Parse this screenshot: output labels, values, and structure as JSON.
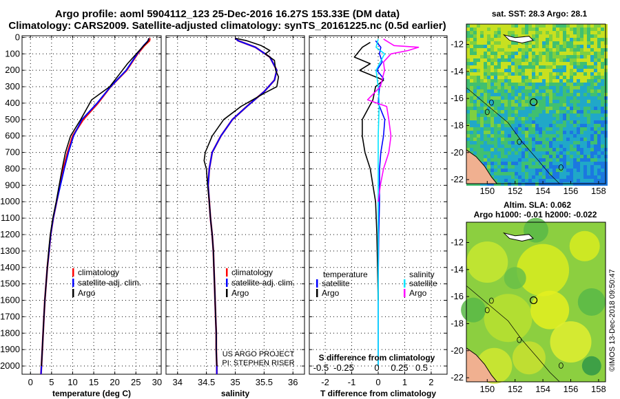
{
  "header": {
    "line1": "Argo profile: aoml 5904112_123 25-Dec-2016 16.27S 153.33E (DM data)",
    "line2": "Climatology: CARS2009. Satellite-adjusted climatology: synTS_20161225.nc (0.5d earlier)"
  },
  "colors": {
    "climatology": "#ff0000",
    "satellite": "#0000ff",
    "argo": "#000000",
    "salinity_sat": "#00e5ff",
    "salinity_argo": "#ff00ff"
  },
  "depth_ticks": [
    0,
    100,
    200,
    300,
    400,
    500,
    600,
    700,
    800,
    900,
    1000,
    1100,
    1200,
    1300,
    1400,
    1500,
    1600,
    1700,
    1800,
    1900,
    2000
  ],
  "credits": {
    "project": "US ARGO PROJECT",
    "pi": "PI: STEPHEN RISER",
    "imos": "©IMOS 13-Dec-2018 09:50:47"
  },
  "chart_data": [
    {
      "type": "line",
      "panel": "temperature",
      "xlabel": "temperature (deg C)",
      "ylim": [
        2050,
        -10
      ],
      "xlim": [
        -2,
        31
      ],
      "xticks": [
        0,
        5,
        10,
        15,
        20,
        25,
        30
      ],
      "legend": [
        "climatology",
        "satellite-adj. clim.",
        "Argo"
      ],
      "series": [
        {
          "name": "climatology",
          "points": [
            [
              28.3,
              5
            ],
            [
              28.2,
              20
            ],
            [
              27,
              50
            ],
            [
              25.4,
              100
            ],
            [
              22.8,
              200
            ],
            [
              19,
              300
            ],
            [
              16,
              400
            ],
            [
              12.5,
              500
            ],
            [
              10,
              600
            ],
            [
              8.8,
              700
            ],
            [
              7.8,
              800
            ],
            [
              7,
              900
            ],
            [
              6.2,
              1000
            ],
            [
              5.4,
              1100
            ],
            [
              4.8,
              1200
            ],
            [
              4.4,
              1300
            ],
            [
              4,
              1400
            ],
            [
              3.7,
              1500
            ],
            [
              3.4,
              1600
            ],
            [
              3.2,
              1700
            ],
            [
              3,
              1800
            ],
            [
              2.8,
              1900
            ],
            [
              2.6,
              2000
            ],
            [
              2.5,
              2050
            ]
          ]
        },
        {
          "name": "satellite-adj. clim.",
          "points": [
            [
              28.1,
              5
            ],
            [
              27.9,
              20
            ],
            [
              26.8,
              50
            ],
            [
              25.3,
              100
            ],
            [
              22.7,
              200
            ],
            [
              19,
              300
            ],
            [
              15.8,
              400
            ],
            [
              12.2,
              500
            ],
            [
              10.2,
              600
            ],
            [
              9,
              700
            ],
            [
              8,
              800
            ],
            [
              7.1,
              900
            ],
            [
              6.2,
              1000
            ],
            [
              5.4,
              1100
            ],
            [
              4.8,
              1200
            ],
            [
              4.4,
              1300
            ],
            [
              4,
              1400
            ],
            [
              3.7,
              1500
            ],
            [
              3.4,
              1600
            ],
            [
              3.2,
              1700
            ],
            [
              3,
              1800
            ],
            [
              2.8,
              1900
            ],
            [
              2.6,
              2000
            ],
            [
              2.5,
              2050
            ]
          ]
        },
        {
          "name": "Argo",
          "points": [
            [
              28.1,
              5
            ],
            [
              27.8,
              25
            ],
            [
              26.5,
              60
            ],
            [
              25.1,
              100
            ],
            [
              23,
              160
            ],
            [
              21.8,
              200
            ],
            [
              18.8,
              300
            ],
            [
              14.5,
              380
            ],
            [
              11.9,
              500
            ],
            [
              9.5,
              600
            ],
            [
              8.3,
              700
            ],
            [
              7.5,
              800
            ],
            [
              6.8,
              900
            ],
            [
              6.1,
              1000
            ],
            [
              5.3,
              1100
            ],
            [
              4.7,
              1200
            ],
            [
              4.3,
              1300
            ],
            [
              4,
              1400
            ],
            [
              3.7,
              1500
            ],
            [
              3.4,
              1600
            ],
            [
              3.2,
              1700
            ],
            [
              3,
              1800
            ],
            [
              2.8,
              1900
            ],
            [
              2.6,
              2000
            ]
          ]
        }
      ]
    },
    {
      "type": "line",
      "panel": "salinity",
      "xlabel": "salinity",
      "ylim": [
        2050,
        -10
      ],
      "xlim": [
        33.8,
        36.2
      ],
      "xticks": [
        34,
        34.5,
        35,
        35.5,
        36
      ],
      "legend": [
        "climatology",
        "satellite-adj. clim.",
        "Argo"
      ],
      "series": [
        {
          "name": "climatology",
          "points": [
            [
              35,
              5
            ],
            [
              35.05,
              20
            ],
            [
              35.35,
              60
            ],
            [
              35.6,
              120
            ],
            [
              35.72,
              200
            ],
            [
              35.68,
              260
            ],
            [
              35.5,
              330
            ],
            [
              35.2,
              420
            ],
            [
              34.95,
              500
            ],
            [
              34.75,
              600
            ],
            [
              34.6,
              700
            ],
            [
              34.55,
              800
            ],
            [
              34.53,
              900
            ],
            [
              34.55,
              1000
            ],
            [
              34.57,
              1100
            ],
            [
              34.6,
              1200
            ],
            [
              34.62,
              1300
            ],
            [
              34.63,
              1400
            ],
            [
              34.64,
              1500
            ],
            [
              34.65,
              1600
            ],
            [
              34.66,
              1700
            ],
            [
              34.67,
              1800
            ],
            [
              34.67,
              1900
            ],
            [
              34.68,
              2000
            ],
            [
              34.68,
              2050
            ]
          ]
        },
        {
          "name": "satellite-adj. clim.",
          "points": [
            [
              35,
              5
            ],
            [
              35.05,
              20
            ],
            [
              35.35,
              60
            ],
            [
              35.6,
              120
            ],
            [
              35.72,
              200
            ],
            [
              35.68,
              260
            ],
            [
              35.5,
              330
            ],
            [
              35.2,
              420
            ],
            [
              34.95,
              500
            ],
            [
              34.75,
              600
            ],
            [
              34.6,
              700
            ],
            [
              34.55,
              800
            ],
            [
              34.53,
              900
            ],
            [
              34.55,
              1000
            ],
            [
              34.57,
              1100
            ],
            [
              34.6,
              1200
            ],
            [
              34.62,
              1300
            ],
            [
              34.63,
              1400
            ],
            [
              34.64,
              1500
            ],
            [
              34.65,
              1600
            ],
            [
              34.66,
              1700
            ],
            [
              34.67,
              1800
            ],
            [
              34.67,
              1900
            ],
            [
              34.68,
              2000
            ],
            [
              34.68,
              2050
            ]
          ]
        },
        {
          "name": "Argo",
          "points": [
            [
              35,
              5
            ],
            [
              35.2,
              20
            ],
            [
              35.45,
              50
            ],
            [
              35.6,
              80
            ],
            [
              35.52,
              100
            ],
            [
              35.68,
              140
            ],
            [
              35.7,
              200
            ],
            [
              35.75,
              240
            ],
            [
              35.72,
              300
            ],
            [
              35.5,
              340
            ],
            [
              35.1,
              420
            ],
            [
              34.8,
              500
            ],
            [
              34.6,
              600
            ],
            [
              34.48,
              700
            ],
            [
              34.46,
              750
            ],
            [
              34.5,
              800
            ],
            [
              34.52,
              900
            ],
            [
              34.55,
              1000
            ],
            [
              34.57,
              1100
            ],
            [
              34.6,
              1200
            ],
            [
              34.62,
              1300
            ],
            [
              34.63,
              1400
            ],
            [
              34.64,
              1500
            ],
            [
              34.65,
              1600
            ],
            [
              34.66,
              1700
            ],
            [
              34.67,
              1800
            ],
            [
              34.67,
              1900
            ],
            [
              34.68,
              2000
            ]
          ]
        }
      ]
    },
    {
      "type": "line",
      "panel": "difference",
      "xlabel": "T difference from climatology",
      "inner_label": "S difference from climatology",
      "ylim": [
        2050,
        -10
      ],
      "xlim": [
        -2.6,
        2.6
      ],
      "xticks": [
        -2,
        -1,
        0,
        1,
        2
      ],
      "sticks_text": [
        "-0.5",
        "-0.25",
        "0",
        "0.25",
        "0.5"
      ],
      "legend_left_title": "temperature",
      "legend_right_title": "salinity",
      "legend_left": [
        "satellite",
        "Argo"
      ],
      "legend_right": [
        "satellite",
        "Argo"
      ],
      "series": [
        {
          "name": "T satellite",
          "points": [
            [
              -0.1,
              20
            ],
            [
              0.1,
              60
            ],
            [
              0.05,
              100
            ],
            [
              0.15,
              150
            ],
            [
              -0.05,
              200
            ],
            [
              0.2,
              250
            ],
            [
              0.05,
              300
            ],
            [
              0,
              400
            ],
            [
              0.25,
              500
            ],
            [
              0.2,
              600
            ],
            [
              0.1,
              700
            ],
            [
              0.05,
              800
            ],
            [
              0.05,
              1000
            ],
            [
              0.02,
              1200
            ],
            [
              0,
              1500
            ],
            [
              0,
              2000
            ]
          ]
        },
        {
          "name": "T Argo",
          "points": [
            [
              -0.3,
              30
            ],
            [
              -0.6,
              60
            ],
            [
              -0.9,
              120
            ],
            [
              -0.3,
              160
            ],
            [
              -0.7,
              200
            ],
            [
              0.2,
              260
            ],
            [
              -0.1,
              300
            ],
            [
              -0.2,
              380
            ],
            [
              -0.6,
              500
            ],
            [
              -0.6,
              600
            ],
            [
              -0.5,
              700
            ],
            [
              -0.3,
              800
            ],
            [
              -0.2,
              900
            ],
            [
              -0.1,
              1000
            ],
            [
              -0.05,
              1200
            ],
            [
              0,
              1600
            ]
          ]
        },
        {
          "name": "S satellite",
          "points": [
            [
              0,
              10
            ],
            [
              -0.02,
              60
            ],
            [
              0.06,
              100
            ],
            [
              0.02,
              150
            ],
            [
              -0.02,
              200
            ],
            [
              0,
              300
            ],
            [
              0.01,
              400
            ],
            [
              0,
              600
            ],
            [
              0,
              1000
            ],
            [
              0,
              1500
            ],
            [
              0,
              2000
            ]
          ]
        },
        {
          "name": "S Argo",
          "points": [
            [
              0.05,
              10
            ],
            [
              0.15,
              50
            ],
            [
              0.38,
              60
            ],
            [
              0.28,
              80
            ],
            [
              0.12,
              100
            ],
            [
              0.05,
              150
            ],
            [
              0.06,
              200
            ],
            [
              0.02,
              300
            ],
            [
              -0.1,
              380
            ],
            [
              0.08,
              420
            ],
            [
              0.1,
              500
            ],
            [
              0.12,
              600
            ],
            [
              0.1,
              700
            ],
            [
              0.05,
              800
            ],
            [
              0.02,
              900
            ],
            [
              0,
              1000
            ]
          ]
        }
      ]
    }
  ],
  "maps": [
    {
      "title": "sat. SST: 28.3 Argo: 28.1",
      "yticks": [
        "-12",
        "-14",
        "-16",
        "-18",
        "-20",
        "-22"
      ],
      "xticks": [
        "150",
        "152",
        "154",
        "156",
        "158"
      ]
    },
    {
      "title_line1": "Altim. SLA: 0.062",
      "title_line2": "Argo h1000: -0.01 h2000: -0.022",
      "yticks": [
        "-12",
        "-14",
        "-16",
        "-18",
        "-20",
        "-22"
      ],
      "xticks": [
        "150",
        "152",
        "154",
        "156",
        "158"
      ]
    }
  ]
}
